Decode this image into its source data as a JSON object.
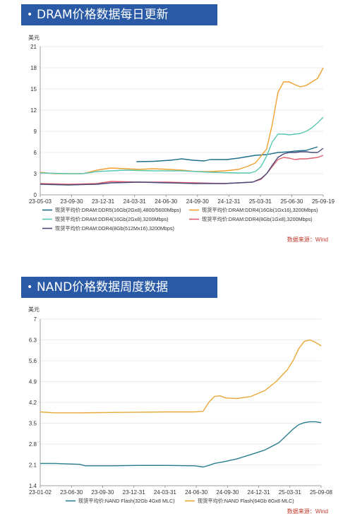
{
  "charts": [
    {
      "header": "DRAM价格数据每日更新"
    },
    {
      "header": "NAND价格数据周度数据"
    }
  ],
  "chart_data": [
    {
      "type": "line",
      "title": "DRAM价格数据每日更新",
      "ylabel": "美元",
      "ylim": [
        0,
        21
      ],
      "yticks": [
        0,
        3,
        6,
        9,
        12,
        15,
        18,
        21
      ],
      "xticks": [
        "23-05-03",
        "23-09-30",
        "23-12-31",
        "24-03-31",
        "24-06-30",
        "24-09-30",
        "24-12-31",
        "25-03-31",
        "25-06-30",
        "25-09-19"
      ],
      "grid": true,
      "legend": "bottom",
      "source": "数据来源：Wind",
      "series": [
        {
          "name": "现货平均价:DRAM:DDR5(16Gb(2Gx8),4800/5600Mbps)",
          "color": "#1f6f8b",
          "points": [
            [
              3.4,
              4.7
            ],
            [
              4,
              4.75
            ],
            [
              4.6,
              4.9
            ],
            [
              5,
              5.1
            ],
            [
              5.4,
              4.9
            ],
            [
              5.8,
              4.8
            ],
            [
              6,
              5.0
            ],
            [
              6.6,
              5.0
            ],
            [
              7,
              5.2
            ],
            [
              7.6,
              5.6
            ],
            [
              8,
              5.7
            ],
            [
              8.4,
              6.0
            ],
            [
              8.8,
              6.1
            ],
            [
              9,
              6.2
            ],
            [
              9.4,
              6.3
            ],
            [
              9.8,
              6.8
            ]
          ]
        },
        {
          "name": "现货平均价:DRAM:DDR4(16Gb(1Gx16),3200Mbps)",
          "color": "#f0a030",
          "points": [
            [
              0,
              3.2
            ],
            [
              0.5,
              3.0
            ],
            [
              1.5,
              3.0
            ],
            [
              2,
              3.5
            ],
            [
              2.5,
              3.8
            ],
            [
              3,
              3.7
            ],
            [
              3.5,
              3.6
            ],
            [
              4,
              3.7
            ],
            [
              4.5,
              3.6
            ],
            [
              5,
              3.5
            ],
            [
              5.5,
              3.3
            ],
            [
              6,
              3.3
            ],
            [
              6.5,
              3.4
            ],
            [
              7,
              3.6
            ],
            [
              7.3,
              4.0
            ],
            [
              7.6,
              4.5
            ],
            [
              7.8,
              5.5
            ],
            [
              8,
              6.5
            ],
            [
              8.2,
              10
            ],
            [
              8.4,
              14.5
            ],
            [
              8.6,
              16.0
            ],
            [
              8.8,
              16.0
            ],
            [
              9,
              15.6
            ],
            [
              9.2,
              15.3
            ],
            [
              9.4,
              15.5
            ],
            [
              9.6,
              16.0
            ],
            [
              9.8,
              16.5
            ],
            [
              10,
              18.0
            ]
          ]
        },
        {
          "name": "现货平均价:DRAM:DDR4(16Gb(2Gx8),3200Mbps)",
          "color": "#5ac8b0",
          "points": [
            [
              0,
              3.1
            ],
            [
              1,
              3.0
            ],
            [
              1.5,
              3.0
            ],
            [
              2,
              3.3
            ],
            [
              3,
              3.5
            ],
            [
              4,
              3.4
            ],
            [
              5,
              3.4
            ],
            [
              6,
              3.2
            ],
            [
              7,
              3.1
            ],
            [
              7.4,
              3.1
            ],
            [
              7.6,
              3.3
            ],
            [
              7.8,
              4.0
            ],
            [
              8,
              5.5
            ],
            [
              8.2,
              7.5
            ],
            [
              8.4,
              8.6
            ],
            [
              8.6,
              8.6
            ],
            [
              8.8,
              8.5
            ],
            [
              9,
              8.6
            ],
            [
              9.2,
              8.7
            ],
            [
              9.4,
              9.0
            ],
            [
              9.6,
              9.5
            ],
            [
              9.8,
              10.2
            ],
            [
              10,
              11.0
            ]
          ]
        },
        {
          "name": "现货平均价:DRAM:DDR4(8Gb(1Gx8),3200Mbps)",
          "color": "#e06070",
          "points": [
            [
              0,
              1.6
            ],
            [
              1,
              1.5
            ],
            [
              2,
              1.6
            ],
            [
              2.5,
              1.9
            ],
            [
              3.5,
              1.8
            ],
            [
              4.5,
              1.8
            ],
            [
              5.5,
              1.7
            ],
            [
              6.5,
              1.6
            ],
            [
              7,
              1.7
            ],
            [
              7.5,
              1.8
            ],
            [
              7.8,
              2.2
            ],
            [
              8,
              3.0
            ],
            [
              8.2,
              4.0
            ],
            [
              8.4,
              5.0
            ],
            [
              8.6,
              5.3
            ],
            [
              8.8,
              5.2
            ],
            [
              9,
              5.0
            ],
            [
              9.2,
              5.1
            ],
            [
              9.4,
              5.1
            ],
            [
              9.6,
              5.2
            ],
            [
              9.8,
              5.3
            ],
            [
              10,
              5.6
            ]
          ]
        },
        {
          "name": "现货平均价:DRAM:DDR4(8Gb(512Mx16),3200Mbps)",
          "color": "#4a4a78",
          "points": [
            [
              0,
              1.5
            ],
            [
              1,
              1.4
            ],
            [
              2,
              1.5
            ],
            [
              2.5,
              1.7
            ],
            [
              3.5,
              1.8
            ],
            [
              4.5,
              1.7
            ],
            [
              5.5,
              1.6
            ],
            [
              6.5,
              1.6
            ],
            [
              7,
              1.7
            ],
            [
              7.5,
              1.8
            ],
            [
              7.8,
              2.3
            ],
            [
              8,
              3.0
            ],
            [
              8.2,
              4.2
            ],
            [
              8.4,
              5.3
            ],
            [
              8.6,
              5.8
            ],
            [
              8.8,
              6.0
            ],
            [
              9,
              6.0
            ],
            [
              9.2,
              6.1
            ],
            [
              9.4,
              6.1
            ],
            [
              9.6,
              6.0
            ],
            [
              9.8,
              6.0
            ],
            [
              10,
              6.6
            ]
          ]
        }
      ]
    },
    {
      "type": "line",
      "title": "NAND价格数据周度数据",
      "ylabel": "美元",
      "ylim": [
        1.4,
        7
      ],
      "yticks": [
        "1.4",
        "2.1",
        "2.8",
        "3.5",
        "4.2",
        "4.9",
        "5.6",
        "6.3",
        "7"
      ],
      "xticks": [
        "23-01-02",
        "23-06-30",
        "23-09-30",
        "23-12-31",
        "24-03-31",
        "24-06-30",
        "24-09-30",
        "24-12-31",
        "25-03-31",
        "25-09-08"
      ],
      "grid": true,
      "legend": "bottom",
      "source": "数据来源：Wind",
      "series": [
        {
          "name": "现货平均价:NAND Flash(32Gb 4Gx8 MLC)",
          "color": "#2a7f8f",
          "points": [
            [
              0,
              2.15
            ],
            [
              0.5,
              2.15
            ],
            [
              1.4,
              2.12
            ],
            [
              1.6,
              2.07
            ],
            [
              2.5,
              2.07
            ],
            [
              3.5,
              2.08
            ],
            [
              4.5,
              2.08
            ],
            [
              5.5,
              2.07
            ],
            [
              5.8,
              2.03
            ],
            [
              6,
              2.08
            ],
            [
              6.2,
              2.15
            ],
            [
              6.5,
              2.2
            ],
            [
              7,
              2.3
            ],
            [
              7.5,
              2.45
            ],
            [
              8,
              2.6
            ],
            [
              8.5,
              2.85
            ],
            [
              9,
              3.3
            ],
            [
              9.2,
              3.45
            ],
            [
              9.4,
              3.52
            ],
            [
              9.6,
              3.55
            ],
            [
              9.8,
              3.55
            ],
            [
              10,
              3.52
            ]
          ]
        },
        {
          "name": "现货平均价:NAND Flash(64Gb 8Gx8 MLC)",
          "color": "#e8a838",
          "points": [
            [
              0,
              3.88
            ],
            [
              0.5,
              3.85
            ],
            [
              1.4,
              3.85
            ],
            [
              2.5,
              3.86
            ],
            [
              3.5,
              3.87
            ],
            [
              4.5,
              3.88
            ],
            [
              5.5,
              3.88
            ],
            [
              5.8,
              3.9
            ],
            [
              6,
              4.2
            ],
            [
              6.2,
              4.4
            ],
            [
              6.4,
              4.42
            ],
            [
              6.6,
              4.35
            ],
            [
              7,
              4.33
            ],
            [
              7.5,
              4.4
            ],
            [
              8,
              4.6
            ],
            [
              8.4,
              4.9
            ],
            [
              8.8,
              5.3
            ],
            [
              9,
              5.6
            ],
            [
              9.2,
              6.0
            ],
            [
              9.4,
              6.25
            ],
            [
              9.6,
              6.3
            ],
            [
              9.8,
              6.22
            ],
            [
              10,
              6.1
            ]
          ]
        }
      ]
    }
  ]
}
